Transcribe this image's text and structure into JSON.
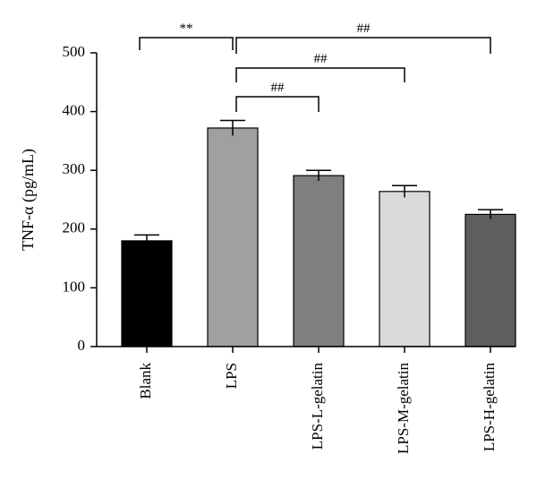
{
  "chart_data": {
    "type": "bar",
    "categories": [
      "Blank",
      "LPS",
      "LPS-L-gelatin",
      "LPS-M-gelatin",
      "LPS-H-gelatin"
    ],
    "values": [
      180,
      372,
      291,
      264,
      225
    ],
    "errors": [
      10,
      13,
      9,
      10,
      8
    ],
    "colors": [
      "#000000",
      "#a0a0a0",
      "#7f7f7f",
      "#d9d9d9",
      "#5e5e5e"
    ],
    "ylabel": "TNF-α (pg/mL)",
    "ylim": [
      0,
      500
    ],
    "yticks": [
      0,
      100,
      200,
      300,
      400,
      500
    ],
    "grid": false,
    "significance": [
      {
        "from": 0,
        "to": 1,
        "label": "**"
      },
      {
        "from": 1,
        "to": 2,
        "label": "##"
      },
      {
        "from": 1,
        "to": 3,
        "label": "##"
      },
      {
        "from": 1,
        "to": 4,
        "label": "##"
      }
    ]
  }
}
